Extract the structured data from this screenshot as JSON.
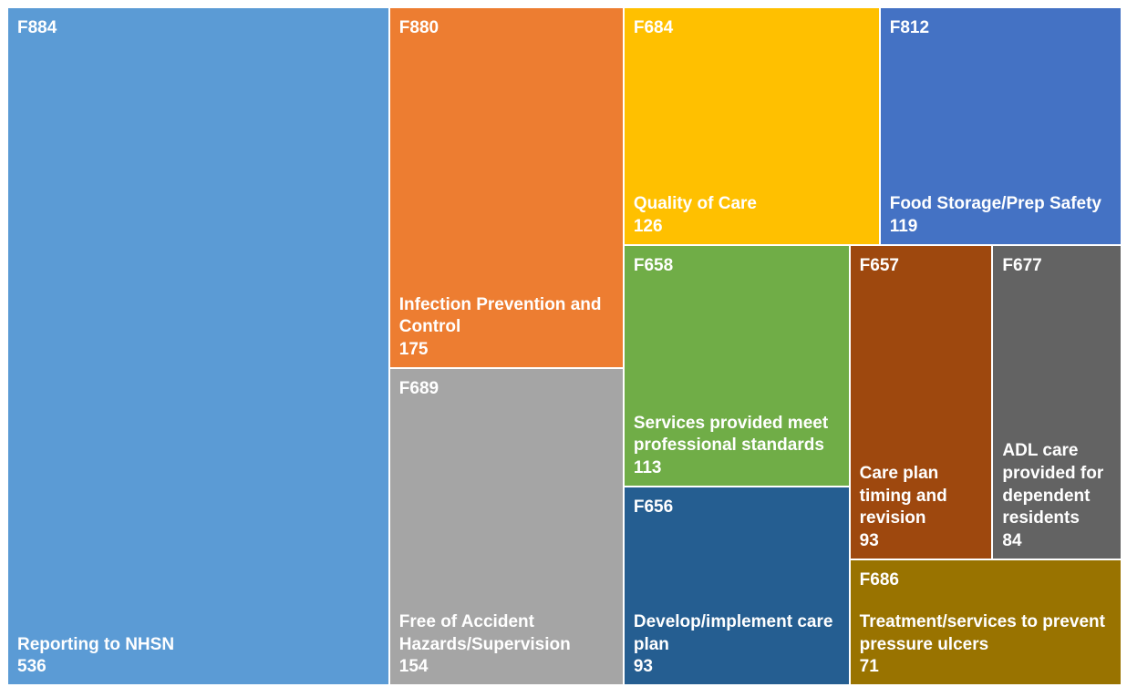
{
  "chart_data": {
    "type": "treemap",
    "items": [
      {
        "code": "F884",
        "name": "Reporting to NHSN",
        "value": 536,
        "color": "#5b9bd5"
      },
      {
        "code": "F880",
        "name": "Infection Prevention and Control",
        "value": 175,
        "color": "#ed7d31"
      },
      {
        "code": "F689",
        "name": "Free of Accident Hazards/Supervision",
        "value": 154,
        "color": "#a5a5a5"
      },
      {
        "code": "F684",
        "name": "Quality of Care",
        "value": 126,
        "color": "#ffc000"
      },
      {
        "code": "F812",
        "name": "Food Storage/Prep Safety",
        "value": 119,
        "color": "#4472c4"
      },
      {
        "code": "F658",
        "name": "Services provided meet professional standards",
        "value": 113,
        "color": "#70ad47"
      },
      {
        "code": "F656",
        "name": "Develop/implement care plan",
        "value": 93,
        "color": "#255e91"
      },
      {
        "code": "F657",
        "name": "Care plan timing and revision",
        "value": 93,
        "color": "#9e480e"
      },
      {
        "code": "F677",
        "name": "ADL care provided for dependent residents",
        "value": 84,
        "color": "#636363"
      },
      {
        "code": "F686",
        "name": "Treatment/services to prevent pressure ulcers",
        "value": 71,
        "color": "#997300"
      }
    ]
  }
}
